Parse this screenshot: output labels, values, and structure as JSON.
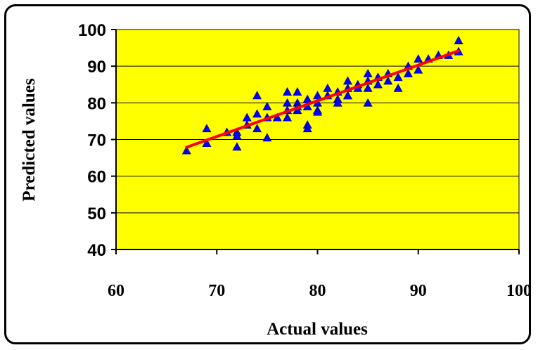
{
  "chart_data": {
    "type": "scatter",
    "title": "",
    "xlabel": "Actual values",
    "ylabel": "Predicted values",
    "xlim": [
      60,
      100
    ],
    "ylim": [
      40,
      100
    ],
    "xticks": [
      60,
      70,
      80,
      90,
      100
    ],
    "yticks": [
      40,
      50,
      60,
      70,
      80,
      90,
      100
    ],
    "grid": "horizontal",
    "legend": "none",
    "colors": {
      "plot_background": "#ffff00",
      "marker": "#0000ff",
      "fit_line": "#ff0000"
    },
    "series": [
      {
        "marker": "triangle",
        "x": [
          67,
          69,
          69,
          71,
          72,
          72,
          72,
          73,
          73,
          74,
          74,
          74,
          75,
          75,
          75,
          76,
          77,
          77,
          77,
          77,
          78,
          78,
          78,
          78,
          79,
          79,
          79,
          79,
          80,
          80,
          80,
          80,
          81,
          81,
          82,
          82,
          82,
          83,
          83,
          83,
          83,
          84,
          84,
          85,
          85,
          85,
          85,
          86,
          86,
          87,
          87,
          88,
          88,
          89,
          89,
          90,
          90,
          91,
          92,
          93,
          94,
          94
        ],
        "y": [
          67,
          69,
          73,
          72,
          72,
          71,
          68,
          76,
          74,
          82,
          77,
          73,
          79,
          76,
          70.5,
          76,
          83,
          80,
          78,
          76,
          83,
          80,
          79,
          78,
          81,
          79,
          74,
          73,
          82,
          80,
          78,
          77.5,
          84,
          82,
          83,
          81,
          80,
          86,
          84,
          82,
          82,
          85,
          84,
          88,
          86,
          84,
          80,
          87,
          85,
          88,
          86,
          87,
          84,
          90,
          88,
          92,
          89,
          92,
          93,
          93,
          97,
          94
        ]
      }
    ],
    "fit_line": {
      "x": [
        67,
        94
      ],
      "y": [
        67.9,
        94.2
      ]
    }
  }
}
